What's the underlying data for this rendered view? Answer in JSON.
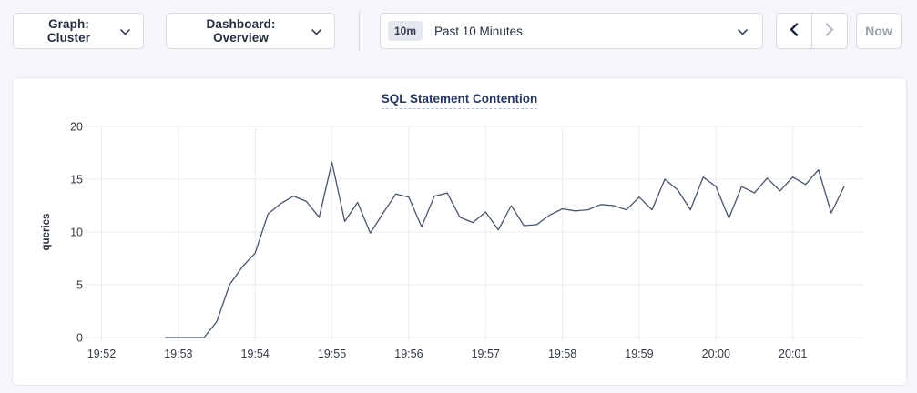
{
  "toolbar": {
    "graph_dropdown": {
      "label": "Graph: Cluster"
    },
    "dashboard_dropdown": {
      "label": "Dashboard: Overview"
    },
    "time_range_picker": {
      "badge": "10m",
      "label": "Past 10 Minutes"
    },
    "now_button": {
      "label": "Now"
    }
  },
  "colors": {
    "title_navy": "#24365e",
    "line": "#485469",
    "grid": "#e9ebef",
    "page_bg": "#f5f6fa",
    "disabled_text": "#9aa1ad"
  },
  "chart_data": {
    "type": "line",
    "title": "SQL Statement Contention",
    "ylabel": "queries",
    "xlabel": "",
    "ylim": [
      0,
      20
    ],
    "y_ticks": [
      0,
      5,
      10,
      15,
      20
    ],
    "x_ticks": [
      "19:52",
      "19:53",
      "19:54",
      "19:55",
      "19:56",
      "19:57",
      "19:58",
      "19:59",
      "20:00",
      "20:01"
    ],
    "grid": true,
    "legend": "none",
    "series": [
      {
        "name": "SQL Statement Contention",
        "unit": "queries",
        "color": "#485469",
        "points": [
          [
            "19:52:50",
            0
          ],
          [
            "19:53:00",
            0
          ],
          [
            "19:53:10",
            0
          ],
          [
            "19:53:20",
            0
          ],
          [
            "19:53:30",
            1.5
          ],
          [
            "19:53:40",
            5.0
          ],
          [
            "19:53:50",
            6.7
          ],
          [
            "19:54:00",
            8.0
          ],
          [
            "19:54:10",
            11.7
          ],
          [
            "19:54:20",
            12.7
          ],
          [
            "19:54:30",
            13.4
          ],
          [
            "19:54:40",
            12.9
          ],
          [
            "19:54:50",
            11.4
          ],
          [
            "19:55:00",
            16.6
          ],
          [
            "19:55:10",
            11.0
          ],
          [
            "19:55:20",
            12.8
          ],
          [
            "19:55:30",
            9.9
          ],
          [
            "19:55:40",
            11.8
          ],
          [
            "19:55:50",
            13.6
          ],
          [
            "19:56:00",
            13.3
          ],
          [
            "19:56:10",
            10.5
          ],
          [
            "19:56:20",
            13.4
          ],
          [
            "19:56:30",
            13.7
          ],
          [
            "19:56:40",
            11.4
          ],
          [
            "19:56:50",
            10.9
          ],
          [
            "19:57:00",
            11.9
          ],
          [
            "19:57:10",
            10.2
          ],
          [
            "19:57:20",
            12.5
          ],
          [
            "19:57:30",
            10.6
          ],
          [
            "19:57:40",
            10.7
          ],
          [
            "19:57:50",
            11.6
          ],
          [
            "19:58:00",
            12.2
          ],
          [
            "19:58:10",
            12.0
          ],
          [
            "19:58:20",
            12.1
          ],
          [
            "19:58:30",
            12.6
          ],
          [
            "19:58:40",
            12.5
          ],
          [
            "19:58:50",
            12.1
          ],
          [
            "19:59:00",
            13.3
          ],
          [
            "19:59:10",
            12.1
          ],
          [
            "19:59:20",
            15.0
          ],
          [
            "19:59:30",
            14.0
          ],
          [
            "19:59:40",
            12.1
          ],
          [
            "19:59:50",
            15.2
          ],
          [
            "20:00:00",
            14.3
          ],
          [
            "20:00:10",
            11.3
          ],
          [
            "20:00:20",
            14.3
          ],
          [
            "20:00:30",
            13.7
          ],
          [
            "20:00:40",
            15.1
          ],
          [
            "20:00:50",
            13.9
          ],
          [
            "20:01:00",
            15.2
          ],
          [
            "20:01:10",
            14.5
          ],
          [
            "20:01:20",
            15.9
          ],
          [
            "20:01:30",
            11.8
          ],
          [
            "20:01:40",
            14.3
          ]
        ]
      }
    ]
  }
}
